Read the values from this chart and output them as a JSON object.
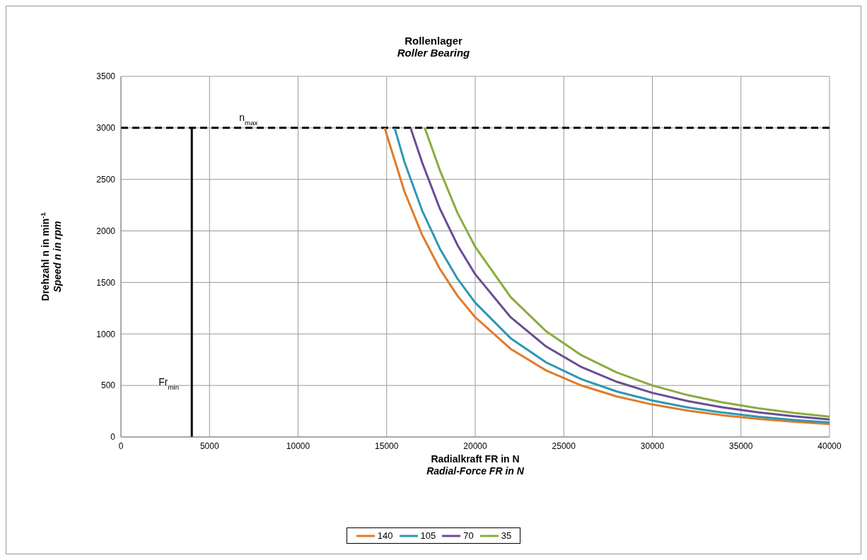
{
  "chart_data": {
    "type": "line",
    "title": "Rollenlager",
    "subtitle": "Roller Bearing",
    "xlabel": "Radialkraft  FR in N\nRadial-Force FR in N",
    "ylabel": "Drehzahl n in min$^{-1}$\nSpeed n in rpm",
    "xlim": [
      0,
      40000
    ],
    "xticks": [
      0,
      5000,
      10000,
      15000,
      20000,
      25000,
      30000,
      35000,
      40000
    ],
    "ylim": [
      0,
      3500
    ],
    "yticks": [
      0,
      500,
      1000,
      1500,
      2000,
      2500,
      3000,
      3500
    ],
    "grid": true,
    "legend": "bottom",
    "marker": "none",
    "line_style": "solid",
    "series": [
      {
        "name": "140",
        "color": "#e07b2a",
        "x": [
          14900,
          15000,
          16000,
          17000,
          18000,
          19000,
          20000,
          22000,
          24000,
          26000,
          28000,
          30000,
          32000,
          34000,
          36000,
          38000,
          40000
        ],
        "values": [
          3000,
          2936,
          2385,
          1962,
          1632,
          1370,
          1162,
          855,
          646,
          499,
          393,
          315,
          256,
          210,
          175,
          147,
          125
        ]
      },
      {
        "name": "105",
        "color": "#2e97b5",
        "x": [
          15450,
          16000,
          17000,
          18000,
          19000,
          20000,
          22000,
          24000,
          26000,
          28000,
          30000,
          32000,
          34000,
          36000,
          38000,
          40000
        ],
        "values": [
          3000,
          2672,
          2199,
          1829,
          1536,
          1303,
          958,
          724,
          560,
          441,
          353,
          287,
          236,
          196,
          165,
          140
        ]
      },
      {
        "name": "70",
        "color": "#6a4c93",
        "x": [
          16350,
          17000,
          18000,
          19000,
          20000,
          22000,
          24000,
          26000,
          28000,
          30000,
          32000,
          34000,
          36000,
          38000,
          40000
        ],
        "values": [
          3000,
          2666,
          2217,
          1862,
          1579,
          1162,
          878,
          678,
          535,
          428,
          348,
          286,
          238,
          200,
          169
        ]
      },
      {
        "name": "35",
        "color": "#8aab3f",
        "x": [
          17150,
          18000,
          19000,
          20000,
          22000,
          24000,
          26000,
          28000,
          30000,
          32000,
          34000,
          36000,
          38000,
          40000
        ],
        "values": [
          3000,
          2590,
          2175,
          1845,
          1358,
          1026,
          793,
          625,
          500,
          406,
          334,
          278,
          234,
          198
        ]
      },
      {
        "color": "#000000",
        "x": [
          4000,
          4000
        ],
        "values": [
          0,
          3000
        ]
      }
    ],
    "ref_lines": [
      {
        "axis": "y",
        "value": 3000,
        "label": "n$_{max}$",
        "color": "#000000",
        "line_style": "dashed"
      }
    ],
    "annotations": [
      {
        "text": "Fr$_{min}$",
        "x": 4000,
        "y": 500
      }
    ]
  }
}
